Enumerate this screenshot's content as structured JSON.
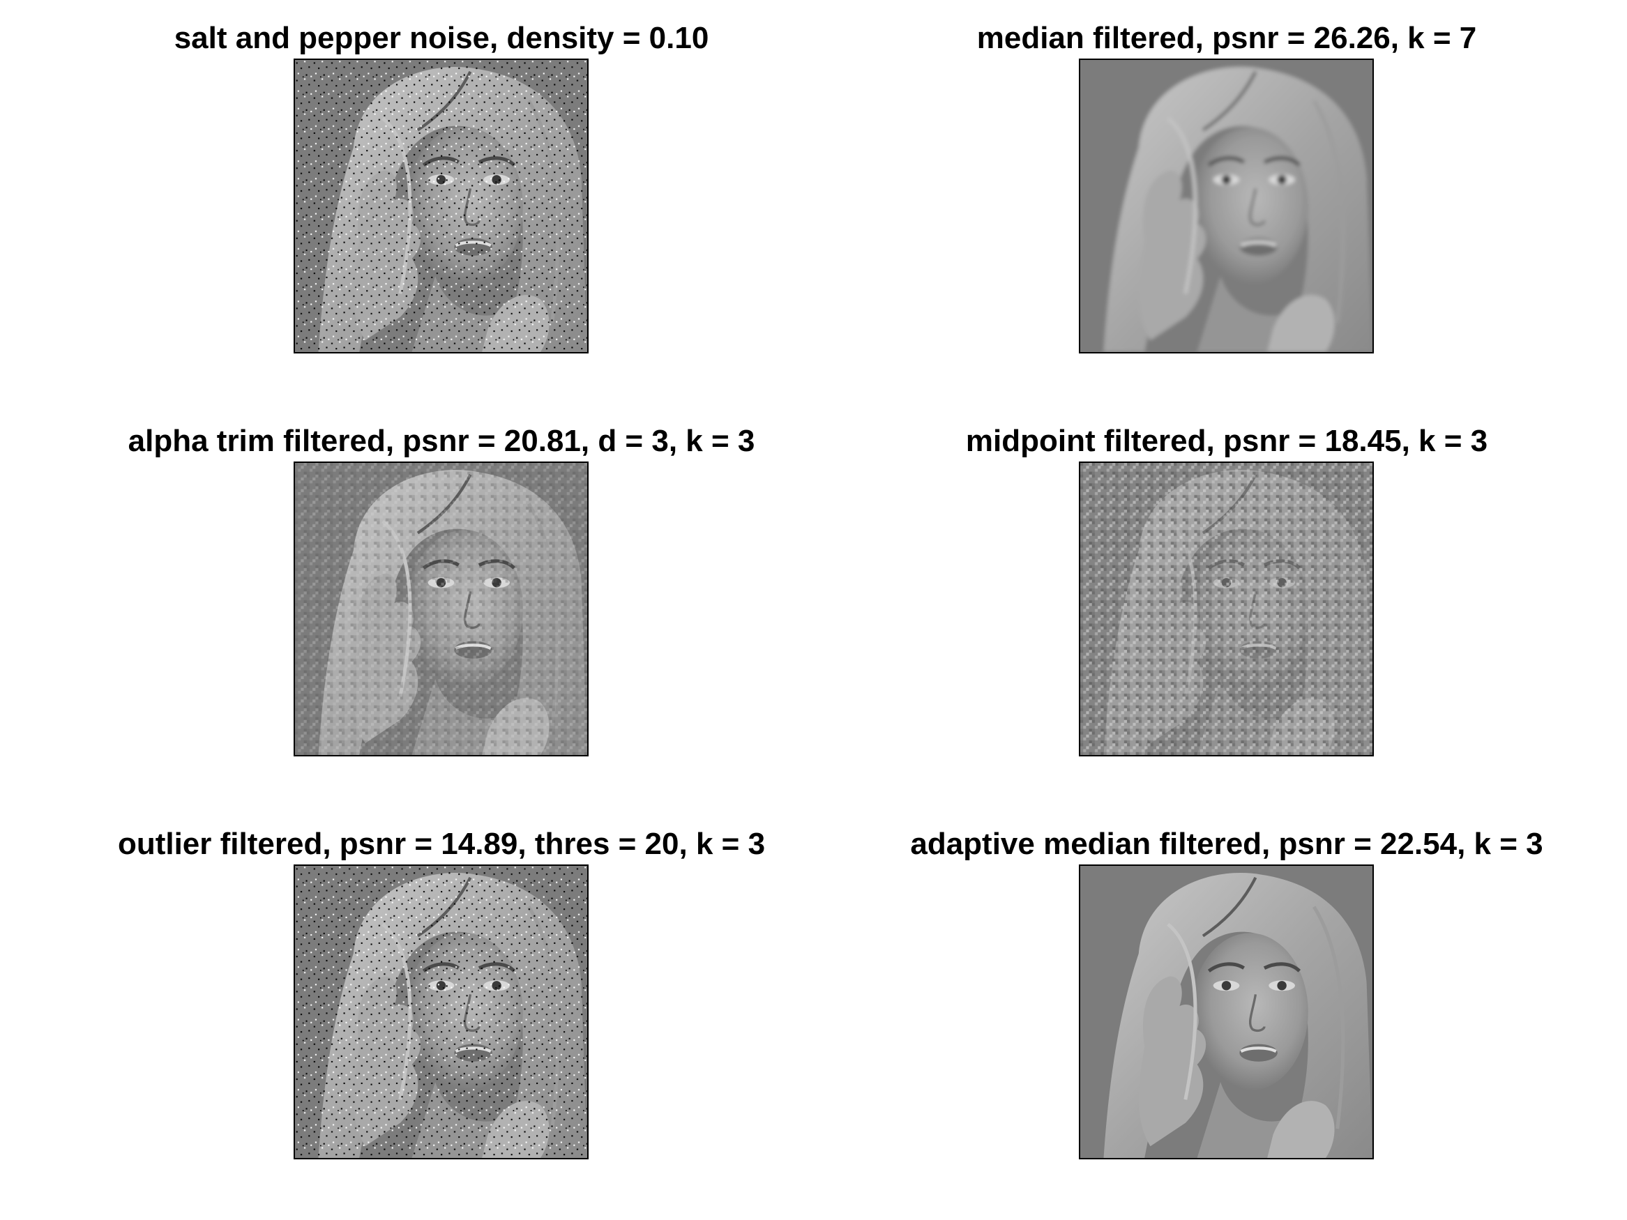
{
  "figure": {
    "panels": [
      {
        "id": "noisy",
        "title": "salt and pepper noise, density = 0.10",
        "style": "speckle",
        "base_gray": "#8a8a8a"
      },
      {
        "id": "median",
        "title": "median filtered, psnr = 26.26, k = 7",
        "style": "smooth",
        "base_gray": "#7a7a7a"
      },
      {
        "id": "alpha",
        "title": "alpha trim filtered, psnr = 20.81, d = 3, k = 3",
        "style": "grain",
        "base_gray": "#808080"
      },
      {
        "id": "midpoint",
        "title": "midpoint filtered, psnr = 18.45, k = 3",
        "style": "heavy-grain",
        "base_gray": "#8c8c8c"
      },
      {
        "id": "outlier",
        "title": "outlier filtered, psnr = 14.89, thres = 20, k = 3",
        "style": "speckle",
        "base_gray": "#888888"
      },
      {
        "id": "adaptive",
        "title": "adaptive median filtered, psnr = 22.54, k = 3",
        "style": "sharp",
        "base_gray": "#7a7a7a"
      }
    ]
  }
}
